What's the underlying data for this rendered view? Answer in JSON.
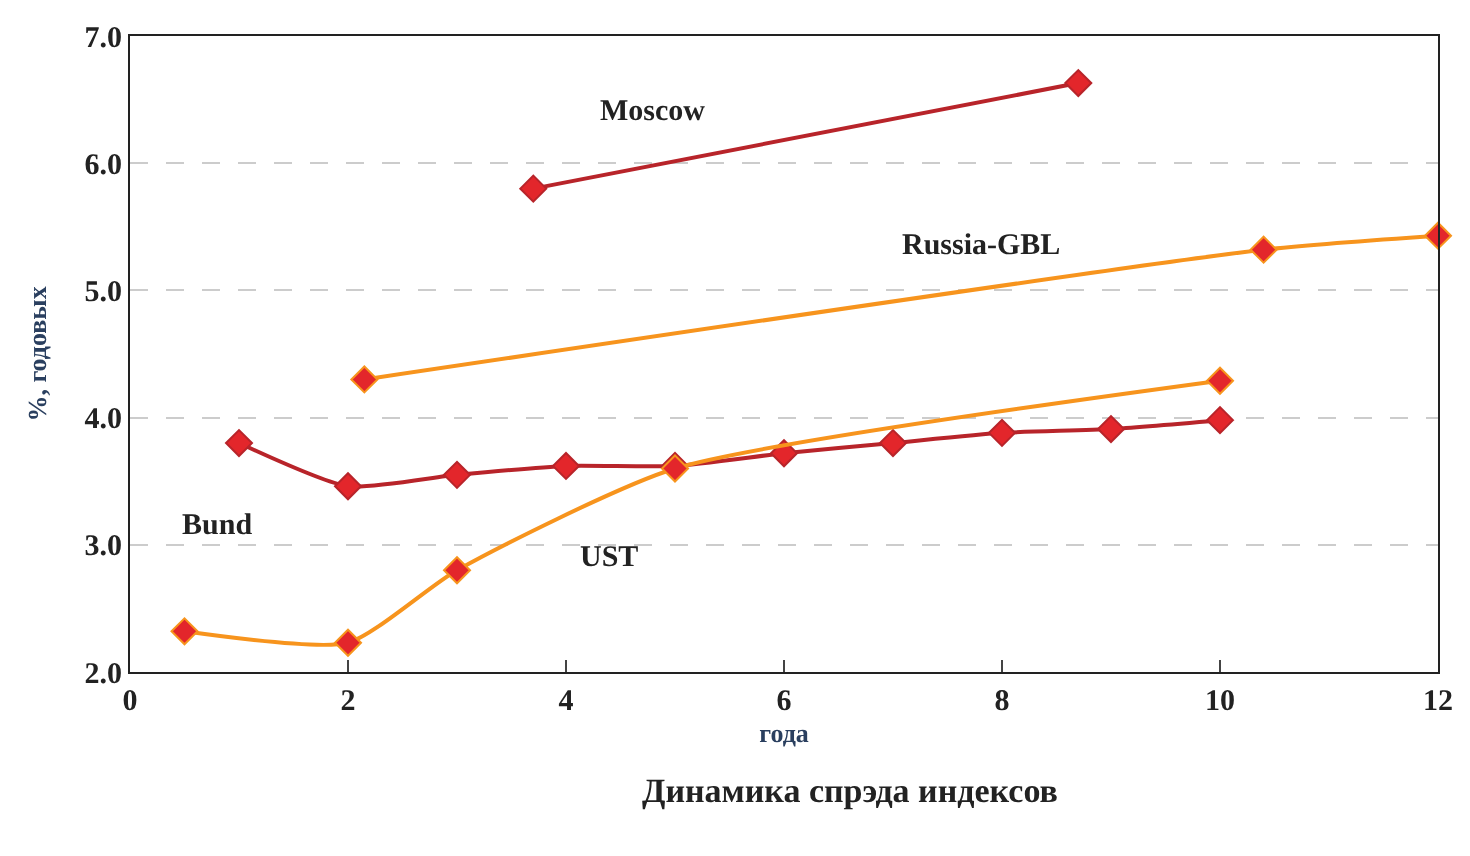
{
  "chart_data": {
    "type": "line",
    "title": "Динамика спрэда индексов",
    "xlabel": "года",
    "ylabel": "%, годовых",
    "xlim": [
      0,
      12
    ],
    "xticks": [
      0,
      2,
      4,
      6,
      8,
      10,
      12
    ],
    "ylim": [
      2,
      7
    ],
    "yticks": [
      {
        "value": 2,
        "label": "2.0"
      },
      {
        "value": 3,
        "label": "3.0"
      },
      {
        "value": 4,
        "label": "4.0"
      },
      {
        "value": 5,
        "label": "5.0"
      },
      {
        "value": 6,
        "label": "6.0"
      },
      {
        "value": 7,
        "label": "7.0"
      }
    ],
    "grid": "y",
    "legend": false,
    "marker": "diamond",
    "line_style": "solid",
    "series": [
      {
        "name": "Moscow",
        "color": "#b8242a",
        "x": [
          3.7,
          8.7
        ],
        "values": [
          5.8,
          6.63
        ]
      },
      {
        "name": "Russia-GBL",
        "color": "#f7941d",
        "x": [
          2.15,
          10.4,
          12
        ],
        "values": [
          4.3,
          5.32,
          5.43
        ]
      },
      {
        "name": "Bund",
        "color": "#b8242a",
        "x": [
          1,
          2,
          3,
          4,
          5,
          6,
          7,
          8,
          9,
          10
        ],
        "values": [
          3.8,
          3.46,
          3.55,
          3.62,
          3.62,
          3.72,
          3.8,
          3.88,
          3.91,
          3.98
        ]
      },
      {
        "name": "UST",
        "color": "#f7941d",
        "x": [
          0.5,
          2,
          3,
          5,
          10
        ],
        "values": [
          2.32,
          2.23,
          2.8,
          3.6,
          4.29
        ]
      }
    ]
  }
}
